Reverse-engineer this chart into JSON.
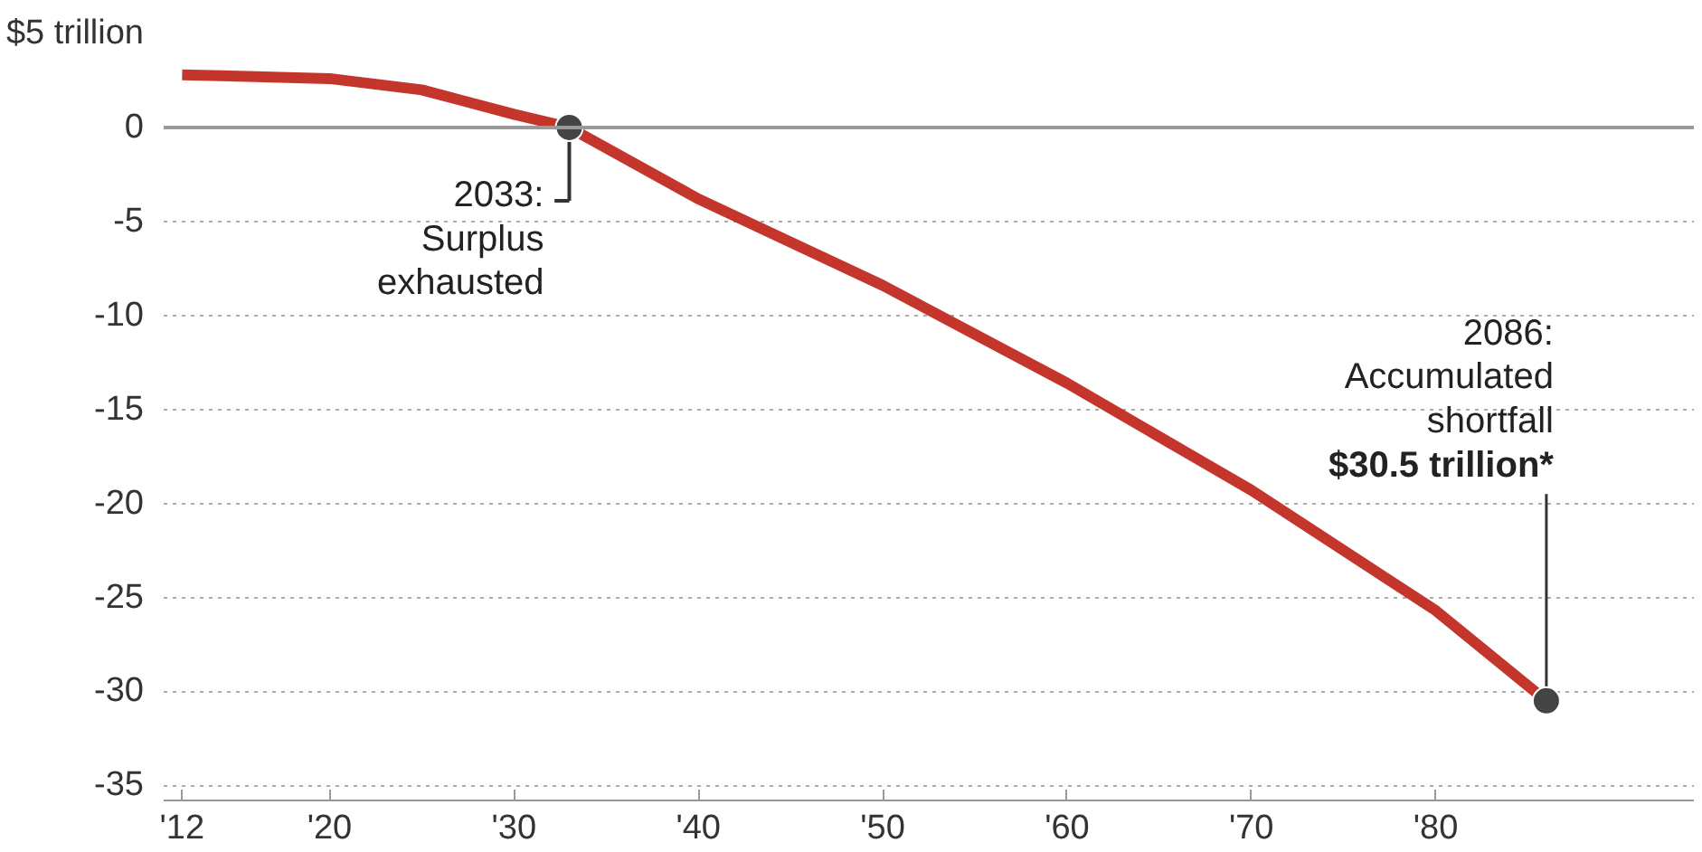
{
  "chart_data": {
    "type": "line",
    "x": [
      2012,
      2016,
      2020,
      2025,
      2030,
      2033,
      2040,
      2050,
      2060,
      2070,
      2080,
      2086
    ],
    "series": [
      {
        "color": "#c4362c",
        "values": [
          2.8,
          2.7,
          2.6,
          2.0,
          0.7,
          0,
          -3.8,
          -8.4,
          -13.6,
          -19.3,
          -25.7,
          -30.5
        ]
      }
    ],
    "xlim": [
      2011,
      2094
    ],
    "ylim": [
      -35.8,
      5
    ],
    "xticks": [
      {
        "value": 2012,
        "label": "'12"
      },
      {
        "value": 2020,
        "label": "'20"
      },
      {
        "value": 2030,
        "label": "'30"
      },
      {
        "value": 2040,
        "label": "'40"
      },
      {
        "value": 2050,
        "label": "'50"
      },
      {
        "value": 2060,
        "label": "'60"
      },
      {
        "value": 2070,
        "label": "'70"
      },
      {
        "value": 2080,
        "label": "'80"
      }
    ],
    "yticks": [
      {
        "value": 5,
        "label": "$5 trillion"
      },
      0,
      -5,
      -10,
      -15,
      -20,
      -25,
      -30,
      -35
    ],
    "ref_lines": [
      {
        "axis": "y",
        "value": 0,
        "color": "#999999"
      }
    ],
    "annotations": [
      {
        "text": "2033:\nSurplus\nexhausted",
        "x": 2033,
        "y": 0
      },
      {
        "text": "2086:\nAccumulated\nshortfall\n$30.5 trillion*",
        "x": 2086,
        "y": -30.5
      }
    ],
    "grid": "y",
    "marker": "none",
    "line_style": "solid"
  }
}
